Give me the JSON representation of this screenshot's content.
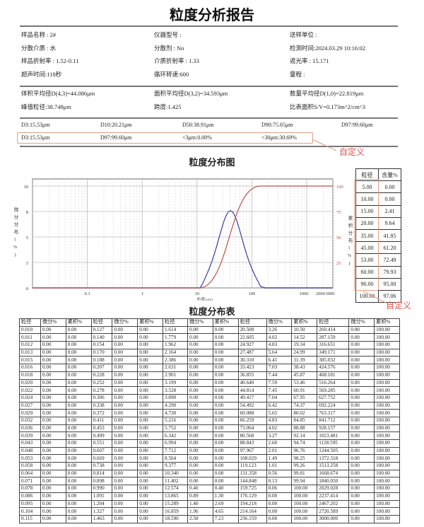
{
  "title": "粒度分析报告",
  "info": [
    [
      "样品名称 : 2#",
      "仪器型号 :",
      "送样单位 :"
    ],
    [
      "分散介质 : 水",
      "分散剂 : No",
      "检测时间:2024.03.29 10:16:02"
    ],
    [
      "样品折射率 : 1.52-0.11",
      "介质折射率 : 1.33",
      "遮光率 : 15.171"
    ],
    [
      "超声时间:118秒",
      "循环转速:600",
      "量程 :"
    ]
  ],
  "stats": [
    [
      "体积平均径D(4,3)=44.086μm",
      "面积平均径D(3,2)=34.593μm",
      "数量平均径D(1,0)=22.819μm"
    ],
    [
      "峰值粒径:38.748μm",
      "跨度:1.425",
      "比表面积S/V=0.173m^2/cm^3"
    ]
  ],
  "d_row": [
    "D3:15.53μm",
    "D10:20.21μm",
    "D50:38.91μm",
    "D90:75.65μm",
    "D97:99.60μm"
  ],
  "custom_row": [
    "D3:15.53μm",
    "D97:99.60μm",
    "<3μm:0.00%",
    "<30μm:30.69%"
  ],
  "custom_label": "自定义",
  "chart_title": "粒度分布图",
  "table_title": "粒度分布表",
  "colors": {
    "differential": "#3b3b9e",
    "cumulative": "#c0504d",
    "annotation": "#d9534f"
  },
  "chart_data": {
    "type": "line",
    "x_scale": "log",
    "xlim": [
      0.01,
      3000
    ],
    "xlabel": "粒度(μm)",
    "x_ticks": [
      "0.1",
      "1",
      "10",
      "100",
      "1000",
      "2000",
      "3000"
    ],
    "y_left_label": "微分分布(%)",
    "y_left_ticks": [
      "0",
      "3",
      "5",
      "8",
      "10"
    ],
    "y_left_lim": [
      0,
      10
    ],
    "y_right_label": "累积分布(%)",
    "y_right_ticks": [
      "25",
      "50",
      "75",
      "100"
    ],
    "y_right_lim": [
      0,
      100
    ],
    "grid": true,
    "x": [
      10.34,
      11.402,
      12.574,
      13.865,
      15.289,
      16.859,
      18.59,
      20.5,
      22.605,
      24.927,
      27.487,
      30.31,
      33.423,
      36.855,
      40.64,
      44.814,
      49.417,
      54.492,
      60.088,
      66.259,
      73.064,
      80.568,
      88.843,
      97.967,
      108.029,
      119.123,
      131.358,
      144.848,
      159.725,
      176.129,
      194.218,
      214.164,
      236.159,
      3000
    ],
    "series": [
      {
        "axis": "left",
        "values": [
          0,
          0,
          0.4,
          0.89,
          1.4,
          1.96,
          2.58,
          3.26,
          4.02,
          4.83,
          5.64,
          6.41,
          7.03,
          7.44,
          7.59,
          7.45,
          7.04,
          6.42,
          5.65,
          4.83,
          4.02,
          3.27,
          2.6,
          2.01,
          1.49,
          1.01,
          0.56,
          0.13,
          0.06,
          0,
          0,
          0,
          0,
          0
        ]
      },
      {
        "axis": "right",
        "values": [
          0,
          0,
          0.4,
          1.3,
          2.69,
          4.65,
          7.23,
          10.5,
          14.52,
          19.34,
          24.99,
          31.39,
          38.43,
          45.87,
          53.46,
          60.91,
          67.95,
          74.37,
          80.02,
          84.85,
          88.88,
          92.14,
          94.74,
          96.76,
          98.25,
          99.26,
          99.81,
          99.94,
          100,
          100,
          100,
          100,
          100,
          100
        ]
      }
    ]
  },
  "mini_table": {
    "headers": [
      "粒径",
      "含量%"
    ],
    "rows": [
      [
        "5.00",
        "0.00"
      ],
      [
        "10.00",
        "0.00"
      ],
      [
        "15.00",
        "2.41"
      ],
      [
        "20.00",
        "9.64"
      ],
      [
        "35.00",
        "41.85"
      ],
      [
        "45.00",
        "61.20"
      ],
      [
        "53.00",
        "72.49"
      ],
      [
        "60.00",
        "79.93"
      ],
      [
        "90.00",
        "95.00"
      ],
      [
        "100.00",
        "97.06"
      ]
    ]
  },
  "big_table": {
    "headers": [
      "粒径",
      "微分%",
      "累积%",
      "粒径",
      "微分%",
      "累积%",
      "粒径",
      "微分%",
      "累积%",
      "粒径",
      "微分%",
      "累积%",
      "粒径",
      "微分%",
      "累积%"
    ],
    "groups": [
      {
        "size": [
          "0.010",
          "0.011",
          "0.012",
          "0.013",
          "0.015",
          "0.016",
          "0.018",
          "0.020",
          "0.022",
          "0.024",
          "0.027",
          "0.029",
          "0.032",
          "0.036",
          "0.039",
          "0.043",
          "0.048",
          "0.053",
          "0.058",
          "0.064",
          "0.071",
          "0.078",
          "0.086",
          "0.095",
          "0.104",
          "0.115"
        ],
        "diff": [
          "0.00",
          "0.00",
          "0.00",
          "0.00",
          "0.00",
          "0.00",
          "0.00",
          "0.00",
          "0.00",
          "0.00",
          "0.00",
          "0.00",
          "0.00",
          "0.00",
          "0.00",
          "0.00",
          "0.00",
          "0.00",
          "0.00",
          "0.00",
          "0.00",
          "0.00",
          "0.00",
          "0.00",
          "0.00",
          "0.00"
        ],
        "cum": [
          "0.00",
          "0.00",
          "0.00",
          "0.00",
          "0.00",
          "0.00",
          "0.00",
          "0.00",
          "0.00",
          "0.00",
          "0.00",
          "0.00",
          "0.00",
          "0.00",
          "0.00",
          "0.00",
          "0.00",
          "0.00",
          "0.00",
          "0.00",
          "0.00",
          "0.00",
          "0.00",
          "0.00",
          "0.00",
          "0.00"
        ]
      },
      {
        "size": [
          "0.127",
          "0.140",
          "0.154",
          "0.170",
          "0.188",
          "0.207",
          "0.228",
          "0.252",
          "0.278",
          "0.306",
          "0.338",
          "0.372",
          "0.411",
          "0.453",
          "0.499",
          "0.551",
          "0.607",
          "0.669",
          "0.738",
          "0.814",
          "0.898",
          "0.990",
          "1.091",
          "1.204",
          "1.327",
          "1.463"
        ],
        "diff": [
          "0.00",
          "0.00",
          "0.00",
          "0.00",
          "0.00",
          "0.00",
          "0.00",
          "0.00",
          "0.00",
          "0.00",
          "0.00",
          "0.00",
          "0.00",
          "0.00",
          "0.00",
          "0.00",
          "0.00",
          "0.00",
          "0.00",
          "0.00",
          "0.00",
          "0.00",
          "0.00",
          "0.00",
          "0.00",
          "0.00"
        ],
        "cum": [
          "0.00",
          "0.00",
          "0.00",
          "0.00",
          "0.00",
          "0.00",
          "0.00",
          "0.00",
          "0.00",
          "0.00",
          "0.00",
          "0.00",
          "0.00",
          "0.00",
          "0.00",
          "0.00",
          "0.00",
          "0.00",
          "0.00",
          "0.00",
          "0.00",
          "0.00",
          "0.00",
          "0.00",
          "0.00",
          "0.00"
        ]
      },
      {
        "size": [
          "1.614",
          "1.779",
          "1.962",
          "2.164",
          "2.386",
          "2.631",
          "2.901",
          "3.199",
          "3.528",
          "3.890",
          "4.290",
          "4.730",
          "5.216",
          "5.752",
          "6.342",
          "6.994",
          "7.712",
          "8.504",
          "9.377",
          "10.340",
          "11.402",
          "12.574",
          "13.865",
          "15.289",
          "16.859",
          "18.590"
        ],
        "diff": [
          "0.00",
          "0.00",
          "0.00",
          "0.00",
          "0.00",
          "0.00",
          "0.00",
          "0.00",
          "0.00",
          "0.00",
          "0.00",
          "0.00",
          "0.00",
          "0.00",
          "0.00",
          "0.00",
          "0.00",
          "0.00",
          "0.00",
          "0.00",
          "0.00",
          "0.40",
          "0.89",
          "1.40",
          "1.96",
          "2.58"
        ],
        "cum": [
          "0.00",
          "0.00",
          "0.00",
          "0.00",
          "0.00",
          "0.00",
          "0.00",
          "0.00",
          "0.00",
          "0.00",
          "0.00",
          "0.00",
          "0.00",
          "0.00",
          "0.00",
          "0.00",
          "0.00",
          "0.00",
          "0.00",
          "0.00",
          "0.00",
          "0.40",
          "1.30",
          "2.69",
          "4.65",
          "7.23"
        ]
      },
      {
        "size": [
          "20.500",
          "22.605",
          "24.927",
          "27.487",
          "30.310",
          "33.423",
          "36.855",
          "40.640",
          "44.814",
          "49.417",
          "54.492",
          "60.088",
          "66.259",
          "73.064",
          "80.568",
          "88.843",
          "97.967",
          "108.029",
          "119.123",
          "131.358",
          "144.848",
          "159.725",
          "176.129",
          "194.218",
          "214.164",
          "236.159"
        ],
        "diff": [
          "3.26",
          "4.02",
          "4.83",
          "5.64",
          "6.41",
          "7.03",
          "7.44",
          "7.59",
          "7.45",
          "7.04",
          "6.42",
          "5.65",
          "4.83",
          "4.02",
          "3.27",
          "2.60",
          "2.01",
          "1.49",
          "1.01",
          "0.56",
          "0.13",
          "0.06",
          "0.00",
          "0.00",
          "0.00",
          "0.00"
        ],
        "cum": [
          "10.50",
          "14.52",
          "19.34",
          "24.99",
          "31.39",
          "38.43",
          "45.87",
          "53.46",
          "60.91",
          "67.95",
          "74.37",
          "80.02",
          "84.85",
          "88.88",
          "92.14",
          "94.74",
          "96.76",
          "98.25",
          "99.26",
          "99.81",
          "99.94",
          "100.00",
          "100.00",
          "100.00",
          "100.00",
          "100.00"
        ]
      },
      {
        "size": [
          "260.414",
          "287.159",
          "316.651",
          "349.171",
          "385.032",
          "424.576",
          "468.181",
          "516.264",
          "569.285",
          "627.752",
          "692.224",
          "763.317",
          "841.712",
          "928.157",
          "1023.481",
          "1128.595",
          "1244.505",
          "1372.318",
          "1513.258",
          "1668.674",
          "1840.050",
          "2029.028",
          "2237.414",
          "2467.202",
          "2720.589",
          "3000.000"
        ],
        "diff": [
          "0.00",
          "0.00",
          "0.00",
          "0.00",
          "0.00",
          "0.00",
          "0.00",
          "0.00",
          "0.00",
          "0.00",
          "0.00",
          "0.00",
          "0.00",
          "0.00",
          "0.00",
          "0.00",
          "0.00",
          "0.00",
          "0.00",
          "0.00",
          "0.00",
          "0.00",
          "0.00",
          "0.00",
          "0.00",
          "0.00"
        ],
        "cum": [
          "100.00",
          "100.00",
          "100.00",
          "100.00",
          "100.00",
          "100.00",
          "100.00",
          "100.00",
          "100.00",
          "100.00",
          "100.00",
          "100.00",
          "100.00",
          "100.00",
          "100.00",
          "100.00",
          "100.00",
          "100.00",
          "100.00",
          "100.00",
          "100.00",
          "100.00",
          "100.00",
          "100.00",
          "100.00",
          "100.00"
        ]
      }
    ]
  }
}
